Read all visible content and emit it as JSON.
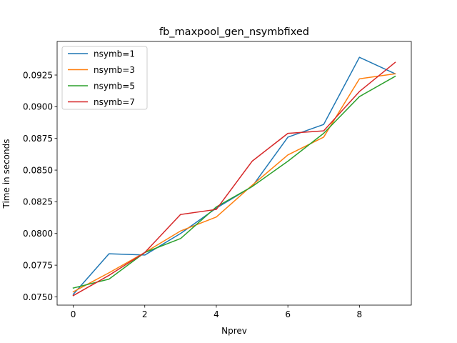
{
  "chart_data": {
    "type": "line",
    "title": "fb_maxpool_gen_nsymbfixed",
    "xlabel": "Nprev",
    "ylabel": "Time in seconds",
    "x": [
      0,
      1,
      2,
      3,
      4,
      5,
      6,
      7,
      8,
      9
    ],
    "xlim": [
      -0.45,
      9.45
    ],
    "ylim": [
      0.07435,
      0.09515
    ],
    "xticks": [
      0,
      2,
      4,
      6,
      8
    ],
    "xtick_labels": [
      "0",
      "2",
      "4",
      "6",
      "8"
    ],
    "yticks": [
      0.075,
      0.0775,
      0.08,
      0.0825,
      0.085,
      0.0875,
      0.09,
      0.0925
    ],
    "ytick_labels": [
      "0.0750",
      "0.0775",
      "0.0800",
      "0.0825",
      "0.0850",
      "0.0875",
      "0.0900",
      "0.0925"
    ],
    "grid": false,
    "legend_position": "top-left",
    "series": [
      {
        "name": "nsymb=1",
        "color": "#1f77b4",
        "values": [
          0.0752,
          0.0784,
          0.0783,
          0.08,
          0.082,
          0.0837,
          0.0876,
          0.0886,
          0.0939,
          0.0926
        ]
      },
      {
        "name": "nsymb=3",
        "color": "#ff7f0e",
        "values": [
          0.0754,
          0.0769,
          0.0785,
          0.0802,
          0.0813,
          0.0838,
          0.0862,
          0.0876,
          0.0922,
          0.0926
        ]
      },
      {
        "name": "nsymb=5",
        "color": "#2ca02c",
        "values": [
          0.0757,
          0.0764,
          0.0785,
          0.0796,
          0.0821,
          0.0837,
          0.0857,
          0.0879,
          0.0908,
          0.0924
        ]
      },
      {
        "name": "nsymb=7",
        "color": "#d62728",
        "values": [
          0.0751,
          0.0767,
          0.0785,
          0.0815,
          0.0819,
          0.0857,
          0.0879,
          0.0881,
          0.0912,
          0.0935
        ]
      }
    ]
  }
}
